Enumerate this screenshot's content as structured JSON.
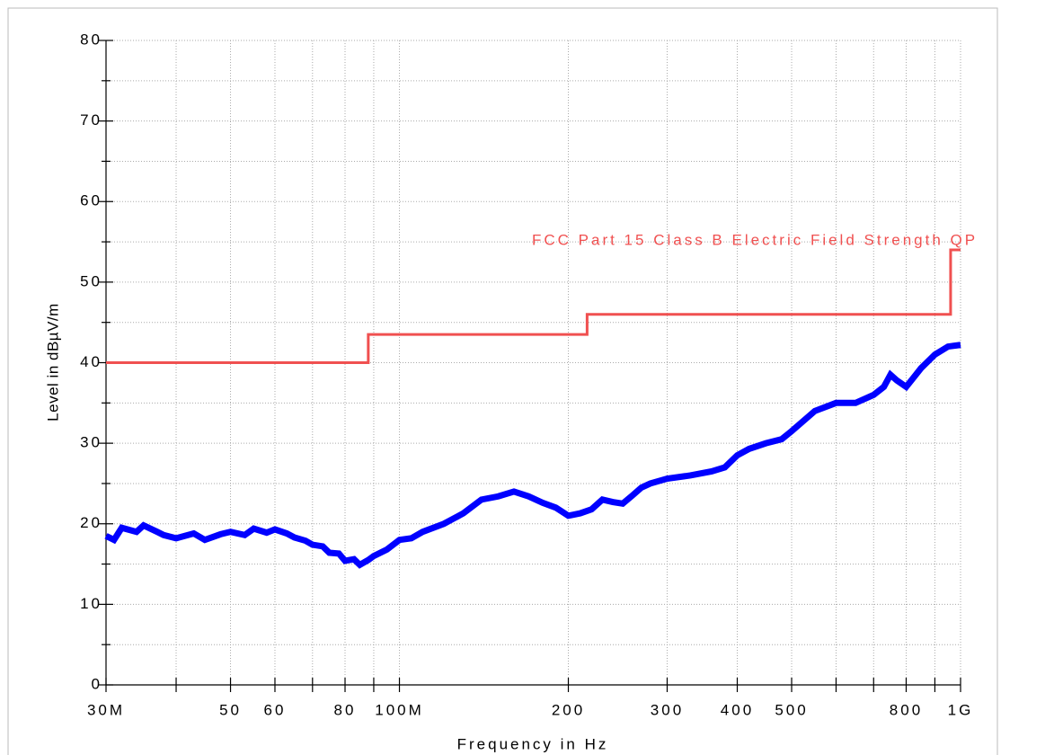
{
  "chart_data": {
    "type": "line",
    "x_label": "Frequency in Hz",
    "y_label": "Level in dBµV/m",
    "log_x": true,
    "grid": true,
    "xlim": [
      30000000.0,
      1000000000.0
    ],
    "ylim": [
      0,
      80
    ],
    "xticks": [
      {
        "value": 30000000.0,
        "label": "30M"
      },
      {
        "value": 50000000.0,
        "label": "50"
      },
      {
        "value": 60000000.0,
        "label": "60"
      },
      {
        "value": 80000000.0,
        "label": "80"
      },
      {
        "value": 100000000.0,
        "label": "100M"
      },
      {
        "value": 200000000.0,
        "label": "200"
      },
      {
        "value": 300000000.0,
        "label": "300"
      },
      {
        "value": 400000000.0,
        "label": "400"
      },
      {
        "value": 500000000.0,
        "label": "500"
      },
      {
        "value": 800000000.0,
        "label": "800"
      },
      {
        "value": 1000000000.0,
        "label": "1G"
      }
    ],
    "xminorticks": [
      40000000.0,
      70000000.0,
      90000000.0,
      600000000.0,
      700000000.0,
      900000000.0
    ],
    "yticks": [
      0,
      10,
      20,
      30,
      40,
      50,
      60,
      70,
      80
    ],
    "yminorticks": [
      5,
      15,
      25,
      35,
      45,
      55,
      65,
      75
    ],
    "series": [
      {
        "color": "#0000ff",
        "x": [
          30000000.0,
          31000000.0,
          32000000.0,
          34000000.0,
          35000000.0,
          37000000.0,
          38000000.0,
          40000000.0,
          43000000.0,
          45000000.0,
          48000000.0,
          50000000.0,
          53000000.0,
          55000000.0,
          58000000.0,
          60000000.0,
          63000000.0,
          65000000.0,
          68000000.0,
          70000000.0,
          73000000.0,
          75000000.0,
          78000000.0,
          80000000.0,
          83000000.0,
          85000000.0,
          88000000.0,
          90000000.0,
          95000000.0,
          100000000.0,
          105000000.0,
          110000000.0,
          120000000.0,
          130000000.0,
          140000000.0,
          150000000.0,
          160000000.0,
          170000000.0,
          180000000.0,
          190000000.0,
          200000000.0,
          210000000.0,
          220000000.0,
          230000000.0,
          240000000.0,
          250000000.0,
          260000000.0,
          270000000.0,
          280000000.0,
          300000000.0,
          330000000.0,
          360000000.0,
          380000000.0,
          400000000.0,
          420000000.0,
          450000000.0,
          480000000.0,
          500000000.0,
          550000000.0,
          600000000.0,
          650000000.0,
          700000000.0,
          730000000.0,
          750000000.0,
          770000000.0,
          800000000.0,
          850000000.0,
          900000000.0,
          950000000.0,
          1000000000.0
        ],
        "values": [
          18.5,
          18,
          19.5,
          19,
          19.8,
          19,
          18.6,
          18.2,
          18.8,
          18,
          18.7,
          19,
          18.6,
          19.4,
          18.9,
          19.3,
          18.8,
          18.3,
          17.9,
          17.4,
          17.2,
          16.4,
          16.3,
          15.4,
          15.6,
          14.9,
          15.5,
          16,
          16.8,
          18,
          18.2,
          19,
          20,
          21.3,
          23,
          23.4,
          24,
          23.4,
          22.6,
          22,
          21,
          21.3,
          21.8,
          23,
          22.7,
          22.5,
          23.5,
          24.5,
          25,
          25.6,
          26,
          26.5,
          27,
          28.5,
          29.3,
          30,
          30.5,
          31.5,
          34,
          35,
          35,
          36,
          37,
          38.5,
          37.8,
          37,
          39.3,
          41,
          42,
          42.2
        ]
      },
      {
        "name": "FCC Part 15 Class B Electric Field Strength QP",
        "color": "#f05050",
        "x": [
          30000000.0,
          88000000.0,
          88000000.0,
          216000000.0,
          216000000.0,
          960000000.0,
          960000000.0,
          1000000000.0
        ],
        "values": [
          40,
          40,
          43.5,
          43.5,
          46,
          46,
          54,
          54
        ]
      }
    ]
  }
}
